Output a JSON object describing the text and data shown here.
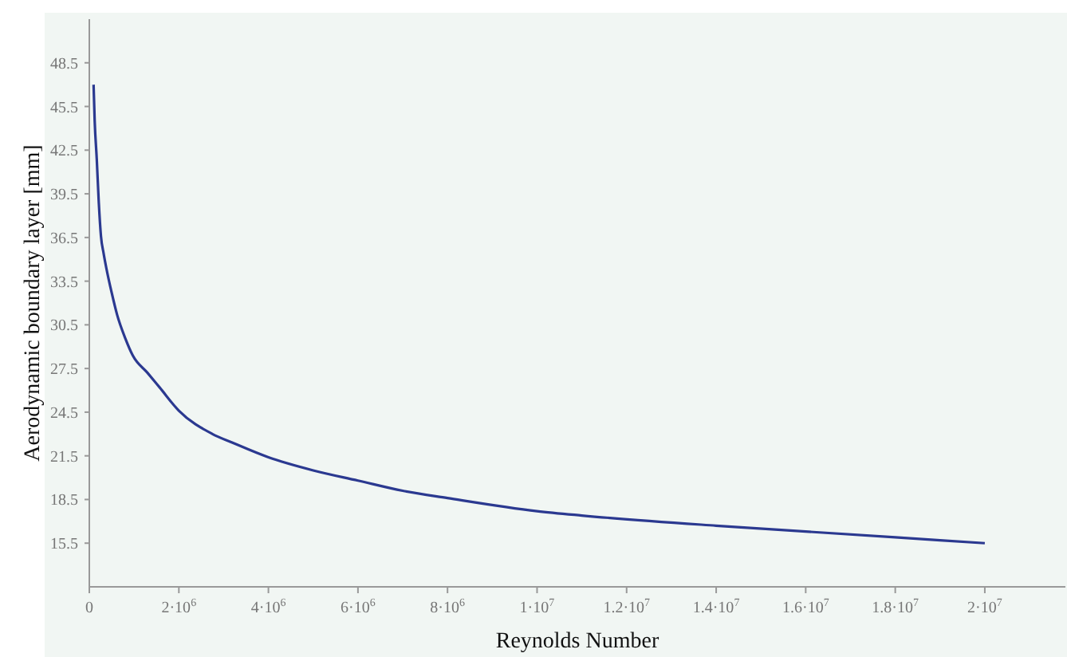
{
  "chart_data": {
    "type": "line",
    "xlabel": "Reynolds Number",
    "ylabel": "Aerodynamic boundary layer [mm]",
    "x": [
      95000,
      120000,
      166000,
      210000,
      260000,
      320000,
      380000,
      500000,
      620000,
      800000,
      970000,
      1300000,
      1570000,
      2000000,
      2750000,
      3200000,
      4000000,
      5000000,
      6000000,
      7000000,
      8000000,
      10000000,
      11000000,
      14000000,
      16000000,
      18000000,
      20000000
    ],
    "series": [
      {
        "color": "#2b3990",
        "values": [
          47.0,
          44.5,
          41.9,
          39.0,
          36.6,
          35.4,
          34.4,
          32.7,
          31.2,
          29.6,
          28.4,
          27.2,
          26.2,
          24.6,
          23.0,
          22.4,
          21.4,
          20.5,
          19.8,
          19.1,
          18.6,
          17.7,
          17.4,
          16.7,
          16.3,
          15.9,
          15.5
        ]
      }
    ],
    "xlim": [
      0,
      21800000
    ],
    "xticks": [
      0,
      {
        "value": 2000000,
        "label": "2·10$^{6}$"
      },
      {
        "value": 4000000,
        "label": "4·10$^{6}$"
      },
      {
        "value": 6000000,
        "label": "6·10$^{6}$"
      },
      {
        "value": 8000000,
        "label": "8·10$^{6}$"
      },
      {
        "value": 10000000,
        "label": "1·10$^{7}$"
      },
      {
        "value": 12000000,
        "label": "1.2·10$^{7}$"
      },
      {
        "value": 14000000,
        "label": "1.4·10$^{7}$"
      },
      {
        "value": 16000000,
        "label": "1.6·10$^{7}$"
      },
      {
        "value": 18000000,
        "label": "1.8·10$^{7}$"
      },
      {
        "value": 20000000,
        "label": "2·10$^{7}$"
      }
    ],
    "ylim": [
      12.5,
      51.5
    ],
    "yticks": [
      15.5,
      18.5,
      21.5,
      24.5,
      27.5,
      30.5,
      33.5,
      36.5,
      39.5,
      42.5,
      45.5,
      48.5
    ],
    "grid": false,
    "legend": false,
    "marker": "none",
    "line_style": "solid"
  }
}
